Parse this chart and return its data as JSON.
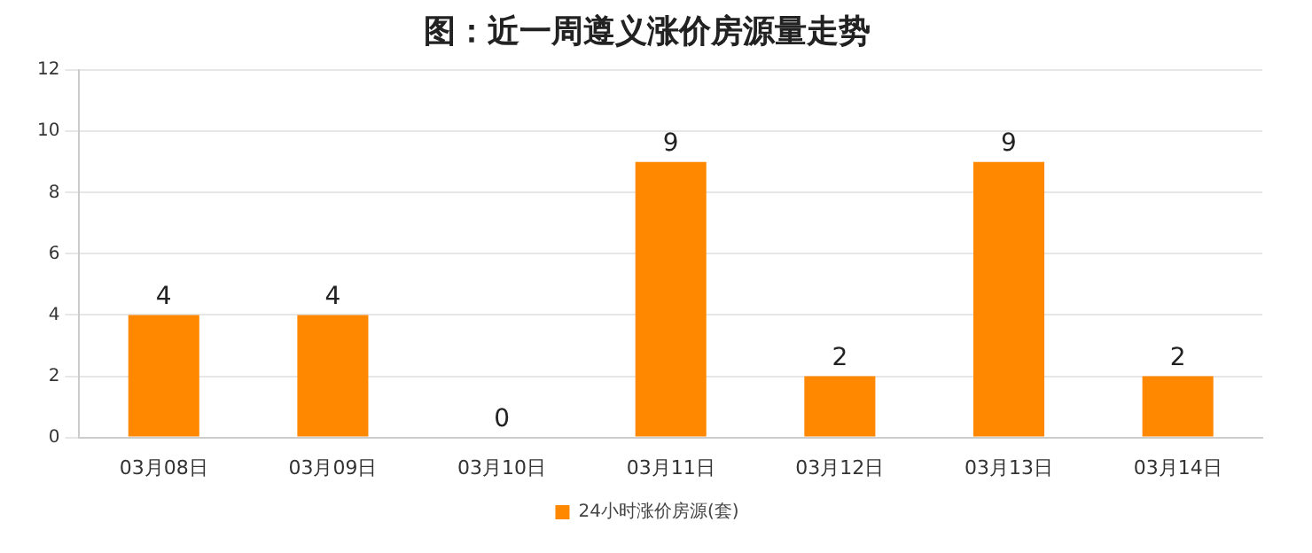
{
  "chart_data": {
    "type": "bar",
    "title": "图：近一周遵义涨价房源量走势",
    "categories": [
      "03月08日",
      "03月09日",
      "03月10日",
      "03月11日",
      "03月12日",
      "03月13日",
      "03月14日"
    ],
    "series": [
      {
        "name": "24小时涨价房源(套)",
        "color": "#ff8800",
        "values": [
          4,
          4,
          0,
          9,
          2,
          9,
          2
        ]
      }
    ],
    "ylim": [
      0,
      12
    ],
    "yticks": [
      0,
      2,
      4,
      6,
      8,
      10,
      12
    ],
    "grid": "y",
    "legend": "bottom",
    "data_labels": true
  }
}
